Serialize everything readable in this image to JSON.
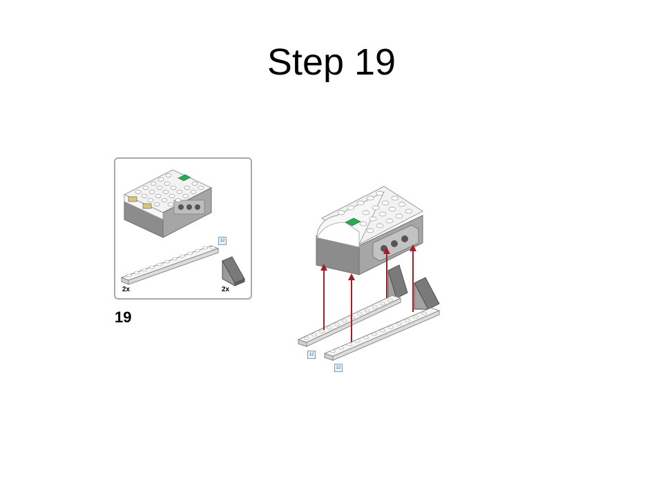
{
  "slide": {
    "title": "Step 19"
  },
  "instructions": {
    "step_number": "19",
    "parts": [
      {
        "name": "plate-1x12",
        "quantity": "2x"
      },
      {
        "name": "slope-brick",
        "quantity": "2x"
      }
    ],
    "length_tag": "12"
  },
  "colors": {
    "hub_white": "#f2f2f2",
    "hub_gray": "#8c8c8c",
    "hub_green": "#2ca85a",
    "part_light": "#e8e8e8",
    "part_dark": "#7a7a7a",
    "arrow": "#a31e22",
    "box_border": "#a9a9a9"
  }
}
